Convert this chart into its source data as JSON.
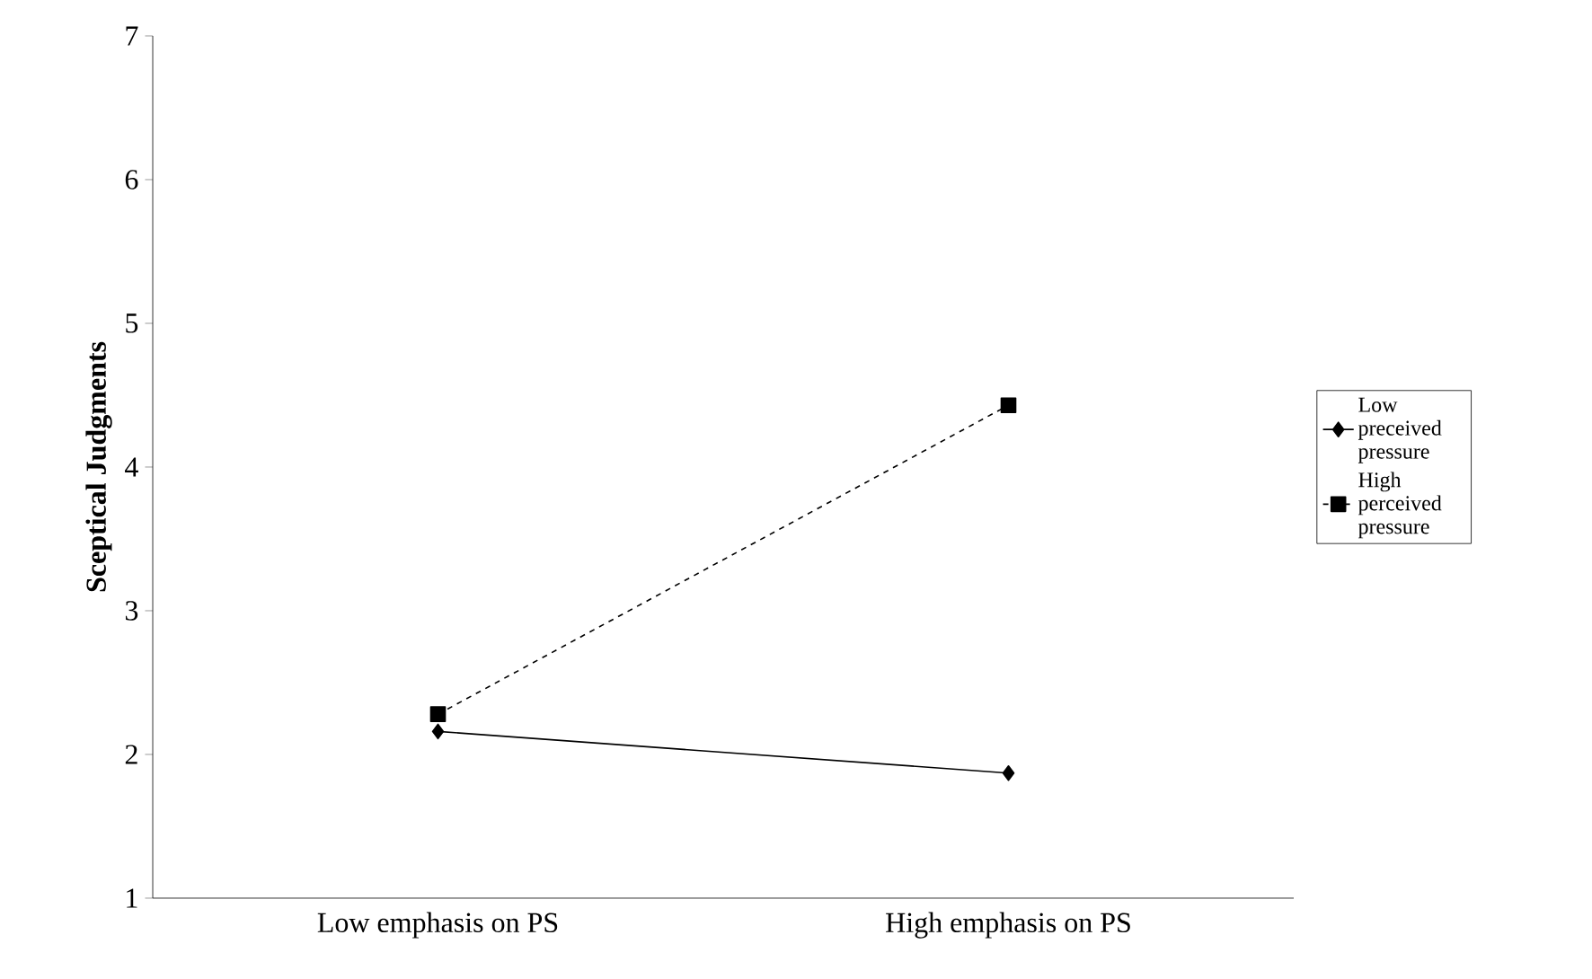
{
  "chart_data": {
    "type": "line",
    "ylabel": "Sceptical Judgments",
    "categories": [
      "Low emphasis on PS",
      "High emphasis on PS"
    ],
    "series": [
      {
        "name": "Low preceived pressure",
        "color": "#000000",
        "values": [
          2.16,
          1.87
        ],
        "marker": "diamond",
        "line_style": "solid"
      },
      {
        "name": "High perceived pressure",
        "color": "#000000",
        "values": [
          2.28,
          4.43
        ],
        "marker": "square",
        "line_style": "dashed"
      }
    ],
    "ylim": [
      1,
      7
    ],
    "yticks": [
      1,
      2,
      3,
      4,
      5,
      6,
      7
    ],
    "grid": false,
    "legend": "right"
  }
}
